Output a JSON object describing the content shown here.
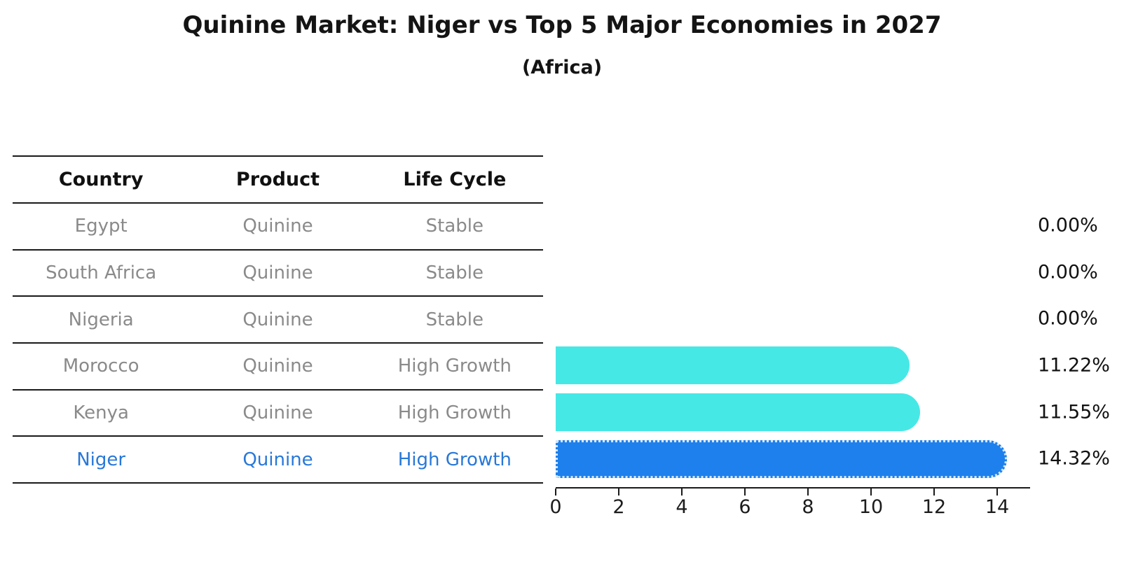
{
  "title": "Quinine Market: Niger vs Top 5 Major Economies in 2027",
  "subtitle": "(Africa)",
  "table": {
    "headers": [
      "Country",
      "Product",
      "Life Cycle"
    ],
    "rows": [
      {
        "country": "Egypt",
        "product": "Quinine",
        "life_cycle": "Stable",
        "highlight": false
      },
      {
        "country": "South Africa",
        "product": "Quinine",
        "life_cycle": "Stable",
        "highlight": false
      },
      {
        "country": "Nigeria",
        "product": "Quinine",
        "life_cycle": "Stable",
        "highlight": false
      },
      {
        "country": "Morocco",
        "product": "Quinine",
        "life_cycle": "High Growth",
        "highlight": false
      },
      {
        "country": "Kenya",
        "product": "Quinine",
        "life_cycle": "High Growth",
        "highlight": false
      },
      {
        "country": "Niger",
        "product": "Quinine",
        "life_cycle": "High Growth",
        "highlight": true
      }
    ]
  },
  "chart_data": {
    "type": "bar",
    "orientation": "horizontal",
    "title": "Quinine Market: Niger vs Top 5 Major Economies in 2027 (Africa)",
    "categories": [
      "Egypt",
      "South Africa",
      "Nigeria",
      "Morocco",
      "Kenya",
      "Niger"
    ],
    "values": [
      0.0,
      0.0,
      0.0,
      11.22,
      11.55,
      14.32
    ],
    "value_labels": [
      "0.00%",
      "0.00%",
      "0.00%",
      "11.22%",
      "11.55%",
      "14.32%"
    ],
    "xlabel": "",
    "ylabel": "",
    "xlim": [
      0,
      15
    ],
    "xticks": [
      0,
      2,
      4,
      6,
      8,
      10,
      12,
      14
    ],
    "grid": false,
    "legend": false,
    "highlight_index": 5
  },
  "colors": {
    "bar_default": "#46e8e6",
    "bar_highlight": "#1e80ec",
    "highlight_text": "#2878d8",
    "muted_text": "#8a8a8a",
    "rule": "#1a1a1a"
  }
}
